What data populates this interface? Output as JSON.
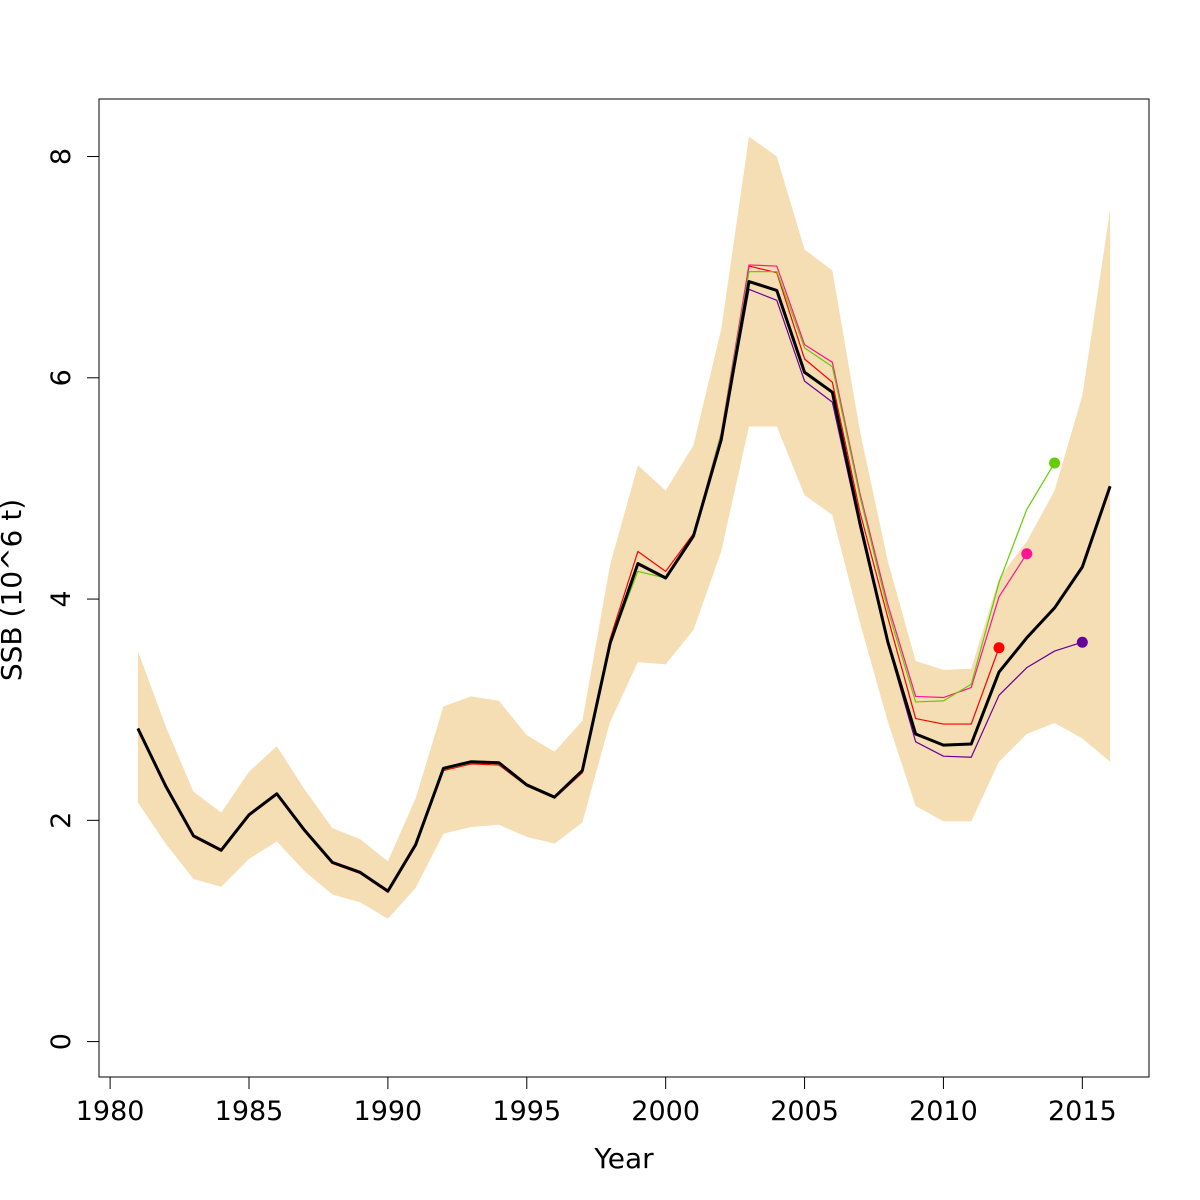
{
  "chart_data": {
    "type": "line",
    "xlabel": "Year",
    "ylabel": "SSB (10^6 t)",
    "xlim": [
      1979.6,
      1981.4
    ],
    "ylim": [
      -0.32,
      8.52
    ],
    "x_ticks": [
      1980,
      1985,
      1990,
      1995,
      2000,
      2005,
      2010,
      2015
    ],
    "y_ticks": [
      0,
      2,
      4,
      6,
      8
    ],
    "grid": false,
    "legend": "none",
    "band": {
      "color": "#F5DEB3",
      "x": [
        1981,
        1982,
        1983,
        1984,
        1985,
        1986,
        1987,
        1988,
        1989,
        1990,
        1991,
        1992,
        1993,
        1994,
        1995,
        1996,
        1997,
        1998,
        1999,
        2000,
        2001,
        2002,
        2003,
        2004,
        2005,
        2006,
        2007,
        2008,
        2009,
        2010,
        2011,
        2012,
        2013,
        2014,
        2015,
        2016
      ],
      "upper": [
        3.53,
        2.85,
        2.26,
        2.07,
        2.44,
        2.67,
        2.28,
        1.93,
        1.83,
        1.63,
        2.2,
        3.03,
        3.12,
        3.08,
        2.77,
        2.62,
        2.9,
        4.31,
        5.21,
        4.98,
        5.39,
        6.44,
        8.18,
        8.0,
        7.16,
        6.97,
        5.51,
        4.34,
        3.44,
        3.36,
        3.37,
        4.19,
        4.52,
        4.98,
        5.84,
        7.52
      ],
      "lower": [
        2.16,
        1.79,
        1.47,
        1.4,
        1.65,
        1.81,
        1.54,
        1.33,
        1.26,
        1.11,
        1.39,
        1.88,
        1.94,
        1.96,
        1.85,
        1.79,
        1.98,
        2.89,
        3.43,
        3.41,
        3.72,
        4.43,
        5.56,
        5.56,
        4.94,
        4.76,
        3.78,
        2.89,
        2.13,
        1.99,
        1.99,
        2.53,
        2.78,
        2.88,
        2.74,
        2.53
      ]
    },
    "series": [
      {
        "color": "#FF0000",
        "width": 1.2,
        "x": [
          1981,
          1982,
          1983,
          1984,
          1985,
          1986,
          1987,
          1988,
          1989,
          1990,
          1991,
          1992,
          1993,
          1994,
          1995,
          1996,
          1997,
          1998,
          1999,
          2000,
          2001,
          2002,
          2003,
          2004,
          2005,
          2006,
          2007,
          2008,
          2009,
          2010,
          2011,
          2012
        ],
        "y": [
          2.82,
          2.3,
          1.85,
          1.72,
          2.04,
          2.23,
          1.9,
          1.61,
          1.52,
          1.35,
          1.77,
          2.45,
          2.51,
          2.5,
          2.31,
          2.2,
          2.43,
          3.64,
          4.43,
          4.25,
          4.59,
          5.45,
          7.01,
          6.95,
          6.17,
          5.96,
          4.78,
          3.83,
          2.92,
          2.87,
          2.87,
          3.56
        ],
        "end_marker": true
      },
      {
        "color": "#FF1493",
        "width": 1.2,
        "x": [
          1981,
          1982,
          1983,
          1984,
          1985,
          1986,
          1987,
          1988,
          1989,
          1990,
          1991,
          1992,
          1993,
          1994,
          1995,
          1996,
          1997,
          1998,
          1999,
          2000,
          2001,
          2002,
          2003,
          2004,
          2005,
          2006,
          2007,
          2008,
          2009,
          2010,
          2011,
          2012,
          2013
        ],
        "y": [
          2.83,
          2.3,
          1.86,
          1.73,
          2.04,
          2.24,
          1.9,
          1.62,
          1.53,
          1.35,
          1.78,
          2.46,
          2.52,
          2.51,
          2.31,
          2.2,
          2.44,
          3.62,
          4.31,
          4.2,
          4.58,
          5.5,
          7.02,
          7.01,
          6.3,
          6.14,
          4.95,
          3.95,
          3.12,
          3.11,
          3.2,
          4.02,
          4.41
        ],
        "end_marker": true
      },
      {
        "color": "#66CC00",
        "width": 1.2,
        "x": [
          1981,
          1982,
          1983,
          1984,
          1985,
          1986,
          1987,
          1988,
          1989,
          1990,
          1991,
          1992,
          1993,
          1994,
          1995,
          1996,
          1997,
          1998,
          1999,
          2000,
          2001,
          2002,
          2003,
          2004,
          2005,
          2006,
          2007,
          2008,
          2009,
          2010,
          2011,
          2012,
          2013,
          2014
        ],
        "y": [
          2.83,
          2.31,
          1.86,
          1.73,
          2.05,
          2.24,
          1.91,
          1.62,
          1.53,
          1.36,
          1.78,
          2.46,
          2.52,
          2.51,
          2.31,
          2.2,
          2.44,
          3.6,
          4.25,
          4.19,
          4.58,
          5.49,
          6.96,
          6.96,
          6.27,
          6.1,
          4.92,
          3.9,
          3.07,
          3.08,
          3.23,
          4.15,
          4.81,
          5.23
        ],
        "end_marker": true
      },
      {
        "color": "#660099",
        "width": 1.2,
        "x": [
          1981,
          1982,
          1983,
          1984,
          1985,
          1986,
          1987,
          1988,
          1989,
          1990,
          1991,
          1992,
          1993,
          1994,
          1995,
          1996,
          1997,
          1998,
          1999,
          2000,
          2001,
          2002,
          2003,
          2004,
          2005,
          2006,
          2007,
          2008,
          2009,
          2010,
          2011,
          2012,
          2013,
          2014,
          2015
        ],
        "y": [
          2.83,
          2.31,
          1.86,
          1.73,
          2.05,
          2.24,
          1.91,
          1.62,
          1.53,
          1.36,
          1.78,
          2.47,
          2.53,
          2.52,
          2.32,
          2.21,
          2.45,
          3.58,
          4.33,
          4.2,
          4.57,
          5.43,
          6.8,
          6.7,
          5.97,
          5.78,
          4.64,
          3.59,
          2.71,
          2.58,
          2.57,
          3.13,
          3.38,
          3.53,
          3.61
        ],
        "end_marker": true
      },
      {
        "color": "#000000",
        "width": 3,
        "x": [
          1981,
          1982,
          1983,
          1984,
          1985,
          1986,
          1987,
          1988,
          1989,
          1990,
          1991,
          1992,
          1993,
          1994,
          1995,
          1996,
          1997,
          1998,
          1999,
          2000,
          2001,
          2002,
          2003,
          2004,
          2005,
          2006,
          2007,
          2008,
          2009,
          2010,
          2011,
          2012,
          2013,
          2014,
          2015,
          2016
        ],
        "y": [
          2.83,
          2.31,
          1.86,
          1.73,
          2.05,
          2.24,
          1.91,
          1.62,
          1.53,
          1.36,
          1.78,
          2.47,
          2.53,
          2.52,
          2.32,
          2.21,
          2.45,
          3.6,
          4.32,
          4.19,
          4.57,
          5.44,
          6.87,
          6.79,
          6.05,
          5.87,
          4.68,
          3.61,
          2.78,
          2.68,
          2.69,
          3.34,
          3.65,
          3.92,
          4.29,
          5.02
        ],
        "end_marker": false
      }
    ]
  }
}
